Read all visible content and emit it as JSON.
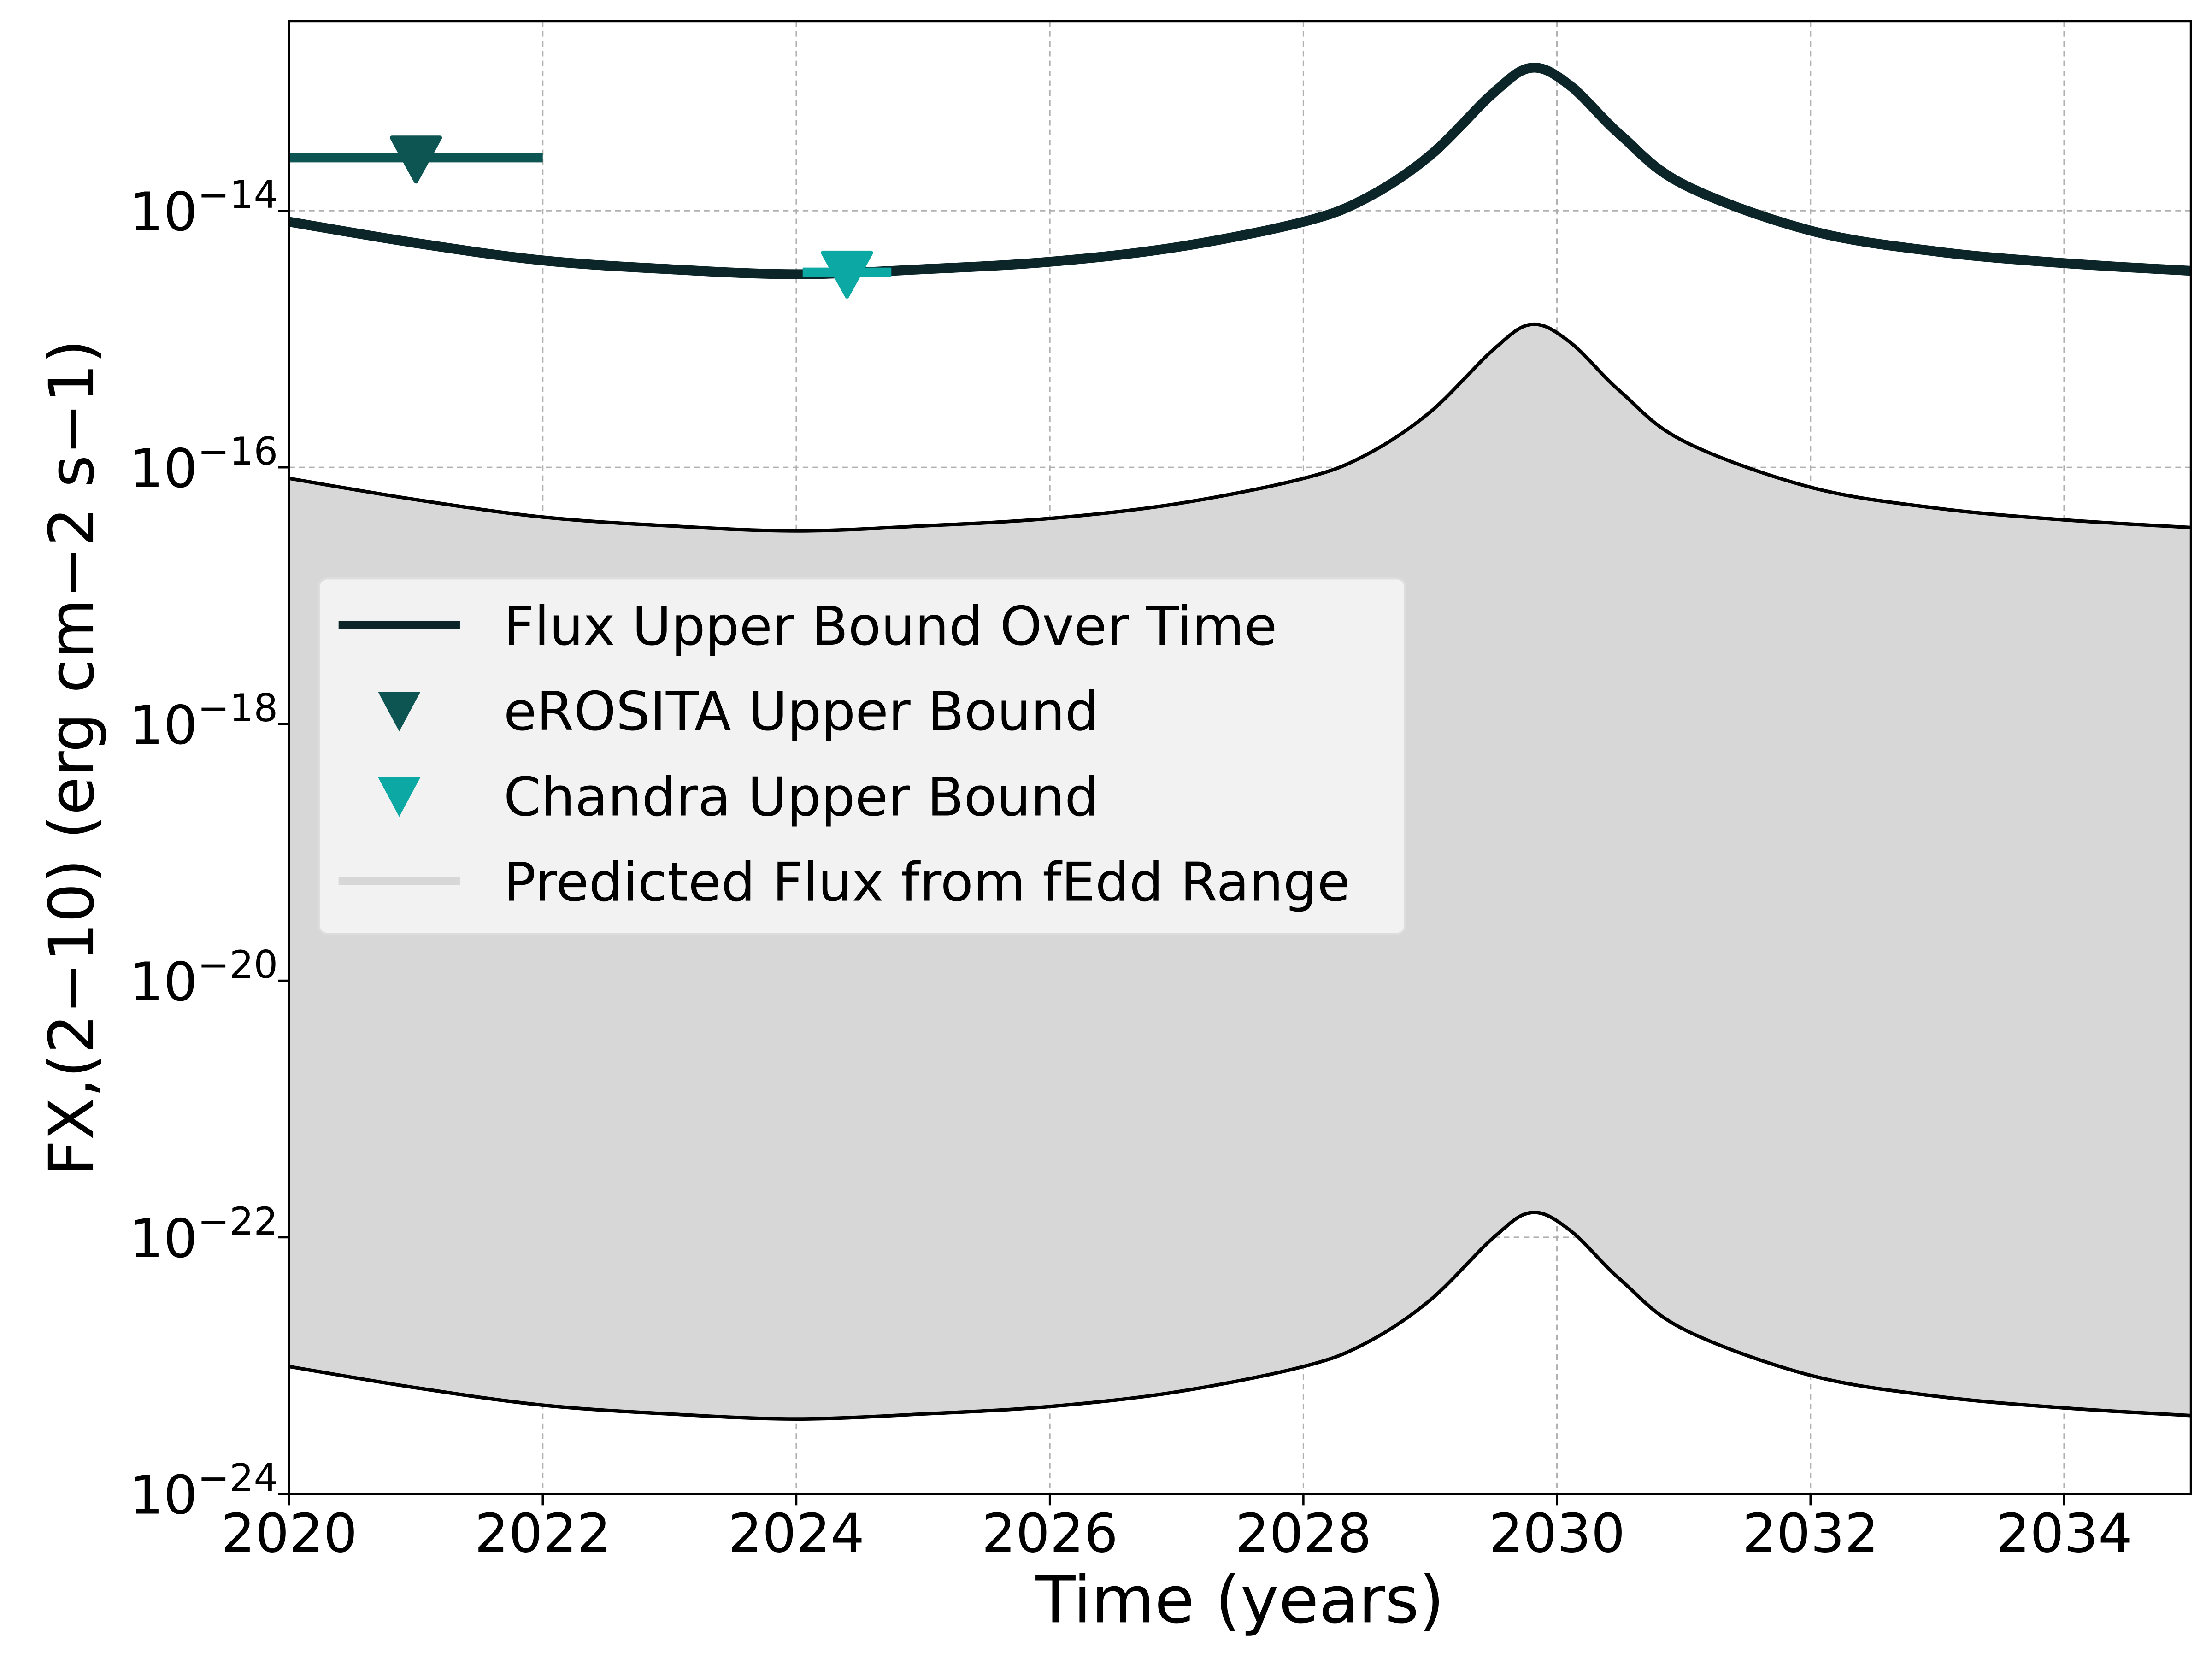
{
  "chart_data": {
    "type": "line",
    "xlabel": "Time (years)",
    "ylabel": "FX,(2−10) (erg cm−2 s−1)",
    "xlim": [
      2020,
      2035
    ],
    "xticks": [
      2020,
      2022,
      2024,
      2026,
      2028,
      2030,
      2032,
      2034
    ],
    "ylim": [
      1e-24,
      3e-13
    ],
    "log_y": true,
    "yticks": [
      {
        "value": 1e-24,
        "label": "10−24"
      },
      {
        "value": 1e-22,
        "label": "10−22"
      },
      {
        "value": 1e-20,
        "label": "10−20"
      },
      {
        "value": 1e-18,
        "label": "10−18"
      },
      {
        "value": 1e-16,
        "label": "10−16"
      },
      {
        "value": 1e-14,
        "label": "10−14"
      }
    ],
    "grid": true,
    "legend_loc": "center left",
    "series": [
      {
        "name": "Flux Upper Bound Over Time",
        "type": "line",
        "color": "#0b2529",
        "x": [
          2020,
          2021,
          2022,
          2023,
          2024,
          2025,
          2026,
          2027,
          2028,
          2028.5,
          2029,
          2029.5,
          2029.8,
          2030.1,
          2030.5,
          2031,
          2032,
          2033,
          2034,
          2035
        ],
        "values": [
          8.2e-15,
          5.6e-15,
          4.1e-15,
          3.5e-15,
          3.2e-15,
          3.5e-15,
          4e-15,
          5.2e-15,
          8.2e-15,
          1.26e-14,
          2.7e-14,
          8.3e-14,
          1.3e-13,
          9.5e-14,
          3.9e-14,
          1.6e-14,
          7e-15,
          4.8e-15,
          3.9e-15,
          3.4e-15
        ]
      },
      {
        "name": "eROSITA Upper Bound",
        "type": "upper_limit",
        "color": "#0d5552",
        "x": [
          2021
        ],
        "values": [
          2.6e-14
        ],
        "xerr": [
          1
        ]
      },
      {
        "name": "Chandra Upper Bound",
        "type": "upper_limit",
        "color": "#0ca8a4",
        "x": [
          2024.4
        ],
        "values": [
          3.3e-15
        ],
        "xerr": [
          0.35
        ]
      },
      {
        "name": "Predicted Flux from fEdd Range",
        "type": "band",
        "color": "#d7d7d7",
        "x": [
          2020,
          2021,
          2022,
          2023,
          2024,
          2025,
          2026,
          2027,
          2028,
          2028.5,
          2029,
          2029.5,
          2029.8,
          2030.1,
          2030.5,
          2031,
          2032,
          2033,
          2034,
          2035
        ],
        "upper": [
          8.2e-17,
          5.6e-17,
          4.1e-17,
          3.5e-17,
          3.2e-17,
          3.5e-17,
          4e-17,
          5.2e-17,
          8.2e-17,
          1.26e-16,
          2.7e-16,
          8.3e-16,
          1.3e-15,
          9.5e-16,
          3.9e-16,
          1.6e-16,
          7e-17,
          4.8e-17,
          3.9e-17,
          3.4e-17
        ],
        "lower": [
          9.84e-24,
          6.72e-24,
          4.92e-24,
          4.2e-24,
          3.84e-24,
          4.2e-24,
          4.8e-24,
          6.24e-24,
          9.84e-24,
          1.51e-23,
          3.24e-23,
          9.96e-23,
          1.56e-22,
          1.14e-22,
          4.68e-23,
          1.92e-23,
          8.4e-24,
          5.76e-24,
          4.68e-24,
          4.08e-24
        ]
      }
    ]
  }
}
